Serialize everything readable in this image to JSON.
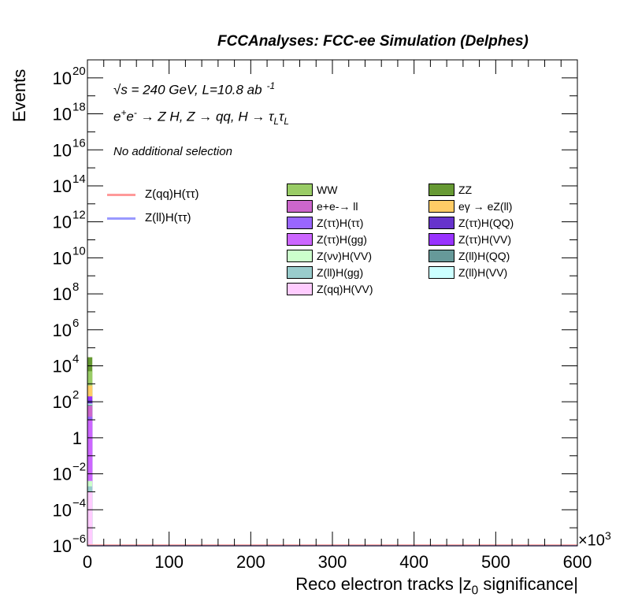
{
  "header": {
    "title": "FCCAnalyses: FCC-ee Simulation (Delphes)"
  },
  "annotations": {
    "energy": "√s = 240 GeV, L=10.8 ab",
    "energy_exp": "-1",
    "process_prefix": "e",
    "process_mid": "e",
    "process_rest": " → Z H, Z  → qq, H  → τ",
    "process_sub1": "L",
    "process_tau2": "τ",
    "process_sub2": "L",
    "selection": "No additional selection"
  },
  "chart_data": {
    "type": "bar",
    "title": "",
    "xlabel": "Reco electron tracks |z",
    "xlabel_sub": "0",
    "xlabel_end": " significance|",
    "x_multiplier": "×10",
    "x_multiplier_exp": "3",
    "ylabel": "Events",
    "xlim": [
      0,
      600
    ],
    "ylim_log10": [
      -6,
      21
    ],
    "y_scale": "log",
    "x_ticks": [
      "0",
      "100",
      "200",
      "300",
      "400",
      "500",
      "600"
    ],
    "y_ticks": [
      {
        "exp": -6,
        "label": "10",
        "sup": "−6"
      },
      {
        "exp": -4,
        "label": "10",
        "sup": "−4"
      },
      {
        "exp": -2,
        "label": "10",
        "sup": "−2"
      },
      {
        "exp": 0,
        "label": "1",
        "sup": ""
      },
      {
        "exp": 2,
        "label": "10",
        "sup": "2"
      },
      {
        "exp": 4,
        "label": "10",
        "sup": "4"
      },
      {
        "exp": 6,
        "label": "10",
        "sup": "6"
      },
      {
        "exp": 8,
        "label": "10",
        "sup": "8"
      },
      {
        "exp": 10,
        "label": "10",
        "sup": "10"
      },
      {
        "exp": 12,
        "label": "10",
        "sup": "12"
      },
      {
        "exp": 14,
        "label": "10",
        "sup": "14"
      },
      {
        "exp": 16,
        "label": "10",
        "sup": "16"
      },
      {
        "exp": 18,
        "label": "10",
        "sup": "18"
      },
      {
        "exp": 20,
        "label": "10",
        "sup": "20"
      }
    ],
    "stack_bin": [
      0,
      6
    ],
    "stack": [
      {
        "name": "Z(qq)H(VV)",
        "color": "#ffccff",
        "top": 0.001
      },
      {
        "name": "Z(ll)H(gg)",
        "color": "#99cccc",
        "top": 0.002
      },
      {
        "name": "Z(νν)H(VV)",
        "color": "#ccffcc",
        "top": 0.004
      },
      {
        "name": "Z(ττ)H(gg)",
        "color": "#cc66ff",
        "top": 10
      },
      {
        "name": "Z(ττ)H(ττ)",
        "color": "#9966ff",
        "top": 15
      },
      {
        "name": "e+e-→ ll",
        "color": "#cc66cc",
        "top": 60
      },
      {
        "name": "Z(ll)H(QQ)",
        "color": "#669999",
        "top": 70
      },
      {
        "name": "Z(ll)H(VV)",
        "color": "#ccffff",
        "top": 80
      },
      {
        "name": "Z(ττ)H(QQ)",
        "color": "#6633cc",
        "top": 120
      },
      {
        "name": "Z(ττ)H(VV)",
        "color": "#9933ff",
        "top": 200
      },
      {
        "name": "eγ → eZ(ll)",
        "color": "#ffcc66",
        "top": 800
      },
      {
        "name": "WW",
        "color": "#99cc66",
        "top": 5000
      },
      {
        "name": "ZZ",
        "color": "#669933",
        "top": 30000
      }
    ],
    "signal_lines": [
      {
        "name": "Z(qq)H(ττ)",
        "color": "#ff9999"
      },
      {
        "name": "Z(ll)H(ττ)",
        "color": "#9999ff"
      }
    ],
    "legend_left": [
      "WW",
      "e+e-→ ll",
      "Z(ττ)H(ττ)",
      "Z(ττ)H(gg)",
      "Z(νν)H(VV)",
      "Z(ll)H(gg)",
      "Z(qq)H(VV)"
    ],
    "legend_left_colors": [
      "#99cc66",
      "#cc66cc",
      "#9966ff",
      "#cc66ff",
      "#ccffcc",
      "#99cccc",
      "#ffccff"
    ],
    "legend_right": [
      "ZZ",
      "eγ → eZ(ll)",
      "Z(ττ)H(QQ)",
      "Z(ττ)H(VV)",
      "Z(ll)H(QQ)",
      "Z(ll)H(VV)"
    ],
    "legend_right_colors": [
      "#669933",
      "#ffcc66",
      "#6633cc",
      "#9933ff",
      "#669999",
      "#ccffff"
    ],
    "grid": false,
    "legend_position": "top"
  }
}
